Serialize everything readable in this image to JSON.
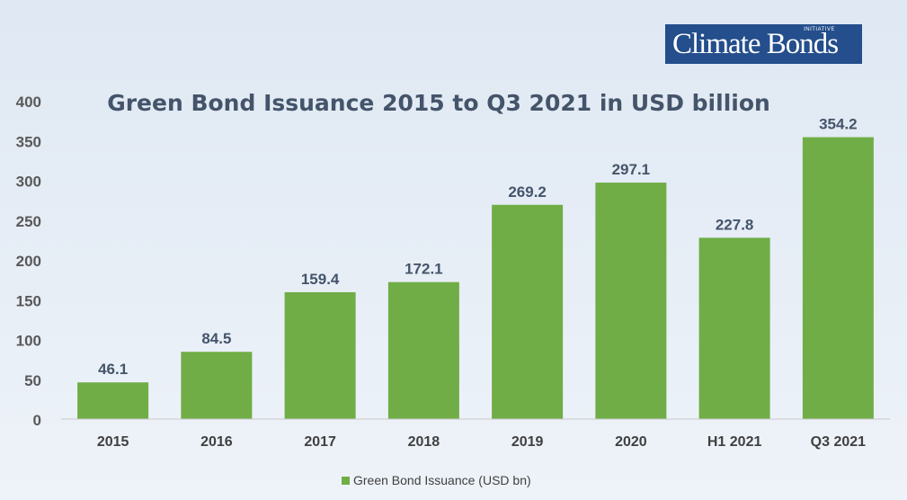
{
  "logo": {
    "main": "Climate Bonds",
    "sup": "INITIATIVE"
  },
  "chart_data": {
    "type": "bar",
    "title": "Green Bond Issuance 2015 to Q3 2021 in USD billion",
    "categories": [
      "2015",
      "2016",
      "2017",
      "2018",
      "2019",
      "2020",
      "H1 2021",
      "Q3 2021"
    ],
    "series": [
      {
        "name": "Green Bond Issuance (USD bn)",
        "values": [
          46.1,
          84.5,
          159.4,
          172.1,
          269.2,
          297.1,
          227.8,
          354.2
        ]
      }
    ],
    "data_labels": [
      "46.1",
      "84.5",
      "159.4",
      "172.1",
      "269.2",
      "297.1",
      "227.8",
      "354.2"
    ],
    "ylim": [
      0,
      400
    ],
    "yticks": [
      0,
      50,
      100,
      150,
      200,
      250,
      300,
      350,
      400
    ],
    "grid": false,
    "legend": "bottom-center",
    "colors": {
      "bar": "#70ad47",
      "text": "#44546a",
      "axis": "#c8c8c8"
    }
  }
}
